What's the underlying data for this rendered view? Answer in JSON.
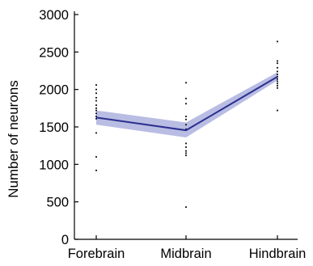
{
  "chart_data": {
    "type": "line",
    "title": "",
    "xlabel": "",
    "ylabel": "Number of neurons",
    "categories": [
      "Forebrain",
      "Midbrain",
      "Hindbrain"
    ],
    "ylim": [
      0,
      3000
    ],
    "yticks": [
      0,
      500,
      1000,
      1500,
      2000,
      2500,
      3000
    ],
    "grid": false,
    "series": [
      {
        "values": [
          1625,
          1455,
          2170
        ],
        "band_lower": [
          1530,
          1360,
          2120
        ],
        "band_upper": [
          1720,
          1560,
          2230
        ],
        "line_color": "#2b2f8f",
        "band_color": "#b9bde3"
      }
    ],
    "points": {
      "Forebrain": [
        2060,
        2000,
        1950,
        1890,
        1850,
        1790,
        1750,
        1720,
        1680,
        1640,
        1610,
        1420,
        1100,
        920
      ],
      "Midbrain": [
        2090,
        1880,
        1810,
        1640,
        1600,
        1530,
        1470,
        1280,
        1230,
        1180,
        1150,
        1120,
        430
      ],
      "Hindbrain": [
        2640,
        2380,
        2350,
        2290,
        2240,
        2200,
        2170,
        2140,
        2110,
        2080,
        2050,
        2020,
        1720
      ]
    },
    "point_color": "#000000"
  }
}
